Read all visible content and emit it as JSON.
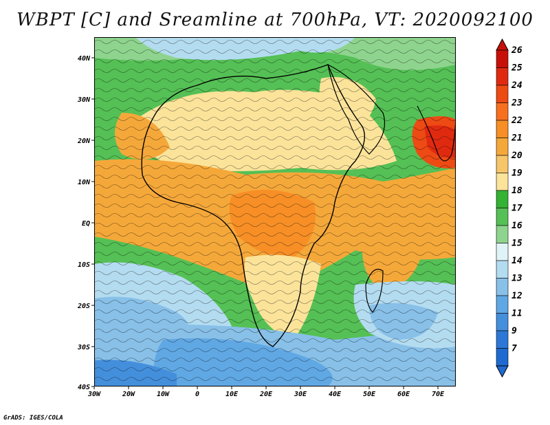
{
  "title": "WBPT [C] and Sreamline at 700hPa, VT: 2020092100",
  "credit": "GrADS: IGES/COLA",
  "lat_labels": [
    "40N",
    "30N",
    "20N",
    "10N",
    "EQ",
    "10S",
    "20S",
    "30S",
    "40S"
  ],
  "lon_labels": [
    "30W",
    "20W",
    "10W",
    "0",
    "10E",
    "20E",
    "30E",
    "40E",
    "50E",
    "60E",
    "70E"
  ],
  "colorbar": {
    "labels": [
      "26",
      "25",
      "24",
      "23",
      "22",
      "21",
      "20",
      "19",
      "18",
      "17",
      "16",
      "15",
      "14",
      "13",
      "12",
      "11",
      "9",
      "7"
    ],
    "colors": [
      "#c8100a",
      "#e02a10",
      "#ee4a14",
      "#f77020",
      "#f78f26",
      "#f5a83a",
      "#f7c56a",
      "#fbe39a",
      "#33b233",
      "#55c055",
      "#8ed48e",
      "#e0f4f8",
      "#b4dcf0",
      "#88c0e8",
      "#60a8e4",
      "#448fdc",
      "#2d78d6",
      "#1e6ad0"
    ]
  }
}
